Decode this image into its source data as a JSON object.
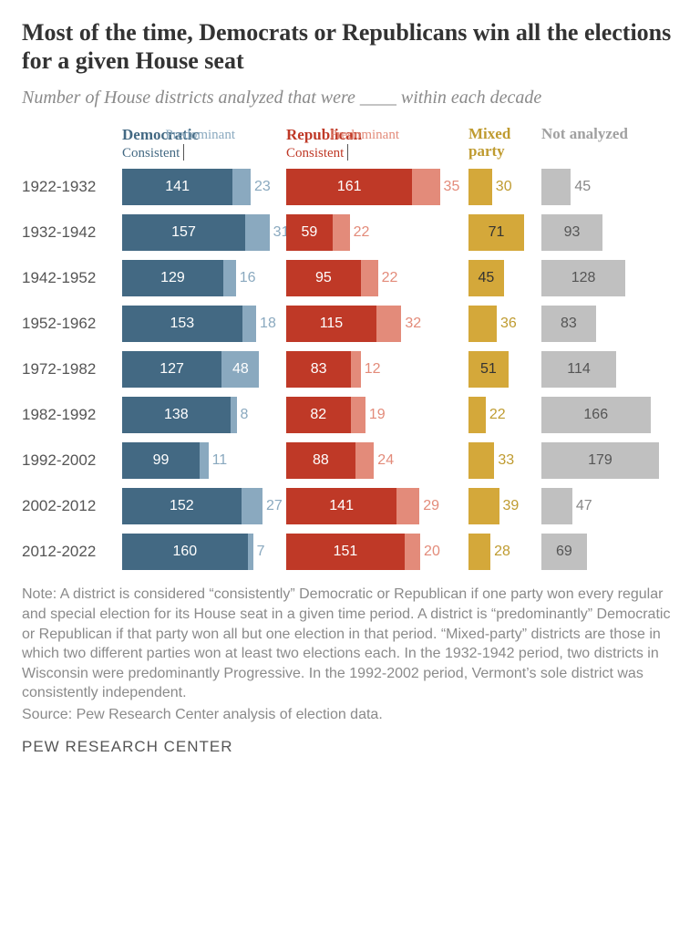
{
  "title": "Most of the time, Democrats or Republicans win all the elections for a given House seat",
  "subtitle": "Number of House districts analyzed that were ____ within each decade",
  "legend": {
    "dem": {
      "party": "Democratic",
      "consistent": "Consistent",
      "predominant": "Predominant"
    },
    "rep": {
      "party": "Republican",
      "consistent": "Consistent",
      "predominant": "Predominant"
    },
    "mixed": "Mixed party",
    "na": "Not analyzed"
  },
  "scale": 0.86,
  "rows": [
    {
      "label": "1922-1932",
      "dem_c": 141,
      "dem_p": 23,
      "rep_c": 161,
      "rep_p": 35,
      "mixed": 30,
      "na": 45
    },
    {
      "label": "1932-1942",
      "dem_c": 157,
      "dem_p": 31,
      "rep_c": 59,
      "rep_p": 22,
      "mixed": 71,
      "na": 93
    },
    {
      "label": "1942-1952",
      "dem_c": 129,
      "dem_p": 16,
      "rep_c": 95,
      "rep_p": 22,
      "mixed": 45,
      "na": 128
    },
    {
      "label": "1952-1962",
      "dem_c": 153,
      "dem_p": 18,
      "rep_c": 115,
      "rep_p": 32,
      "mixed": 36,
      "na": 83
    },
    {
      "label": "1972-1982",
      "dem_c": 127,
      "dem_p": 48,
      "rep_c": 83,
      "rep_p": 12,
      "mixed": 51,
      "na": 114
    },
    {
      "label": "1982-1992",
      "dem_c": 138,
      "dem_p": 8,
      "rep_c": 82,
      "rep_p": 19,
      "mixed": 22,
      "na": 166
    },
    {
      "label": "1992-2002",
      "dem_c": 99,
      "dem_p": 11,
      "rep_c": 88,
      "rep_p": 24,
      "mixed": 33,
      "na": 179
    },
    {
      "label": "2002-2012",
      "dem_c": 152,
      "dem_p": 27,
      "rep_c": 141,
      "rep_p": 29,
      "mixed": 39,
      "na": 47
    },
    {
      "label": "2012-2022",
      "dem_c": 160,
      "dem_p": 7,
      "rep_c": 151,
      "rep_p": 20,
      "mixed": 28,
      "na": 69
    }
  ],
  "note": "Note: A district is considered “consistently” Democratic or Republican if one party won every regular and special election for its House seat in a given time period. A district is “predominantly” Democratic or Republican if that party won all but one election in that period. “Mixed-party” districts are those in which two different parties won at least two elections each. In the 1932-1942 period, two districts in Wisconsin were predominantly Progressive. In the 1992-2002 period, Vermont’s sole district was consistently independent.",
  "source": "Source: Pew Research Center analysis of election data.",
  "footer": "PEW RESEARCH CENTER",
  "colors": {
    "dem_c": "#436983",
    "dem_p": "#8aa9bf",
    "rep_c": "#bf3927",
    "rep_p": "#e38b7a",
    "mixed": "#d4a83a",
    "na": "#c0c0c0"
  }
}
